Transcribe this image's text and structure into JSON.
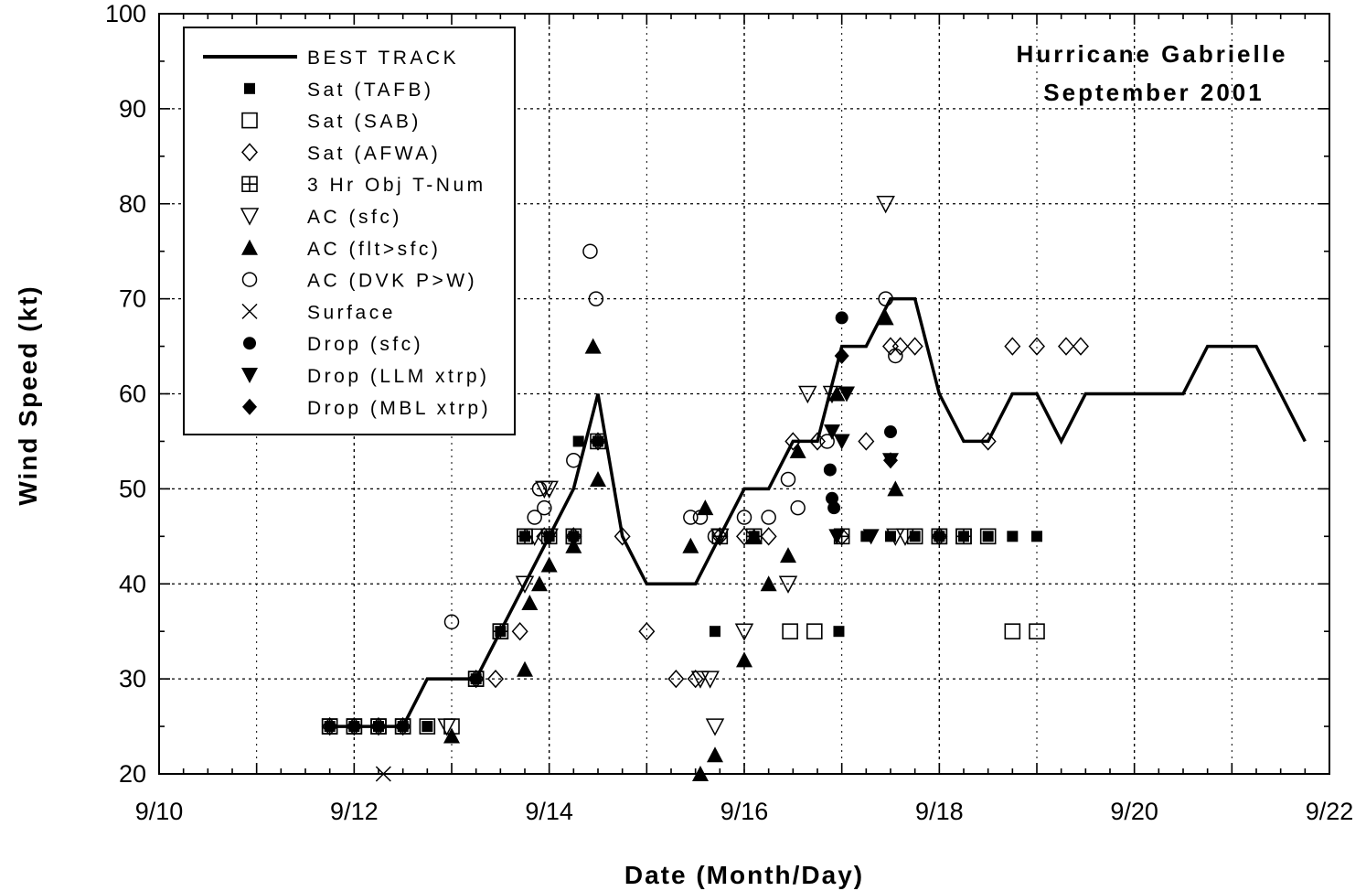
{
  "chart_data": {
    "type": "scatter",
    "title": "Hurricane Gabrielle",
    "subtitle": "September 2001",
    "xlabel": "Date (Month/Day)",
    "ylabel": "Wind Speed (kt)",
    "xlim": [
      10,
      22
    ],
    "ylim": [
      20,
      100
    ],
    "x_tick_values": [
      10,
      12,
      14,
      16,
      18,
      20,
      22
    ],
    "x_tick_labels": [
      "9/10",
      "9/12",
      "9/14",
      "9/16",
      "9/18",
      "9/20",
      "9/22"
    ],
    "y_tick_values": [
      20,
      30,
      40,
      50,
      60,
      70,
      80,
      90,
      100
    ],
    "y_tick_labels": [
      "20",
      "30",
      "40",
      "50",
      "60",
      "70",
      "80",
      "90",
      "100"
    ],
    "x_unit_note": "x values are September day numbers (day of month, fractional days)",
    "grid": true,
    "legend_position": "top-left",
    "series": [
      {
        "name": "BEST TRACK",
        "marker": "line",
        "points": [
          [
            11.75,
            25
          ],
          [
            12.0,
            25
          ],
          [
            12.25,
            25
          ],
          [
            12.5,
            25
          ],
          [
            12.75,
            30
          ],
          [
            13.0,
            30
          ],
          [
            13.25,
            30
          ],
          [
            13.5,
            35
          ],
          [
            13.75,
            40
          ],
          [
            14.0,
            45
          ],
          [
            14.25,
            50
          ],
          [
            14.5,
            60
          ],
          [
            14.75,
            45
          ],
          [
            15.0,
            40
          ],
          [
            15.25,
            40
          ],
          [
            15.5,
            40
          ],
          [
            15.75,
            45
          ],
          [
            16.0,
            50
          ],
          [
            16.25,
            50
          ],
          [
            16.5,
            55
          ],
          [
            16.75,
            55
          ],
          [
            17.0,
            65
          ],
          [
            17.25,
            65
          ],
          [
            17.5,
            70
          ],
          [
            17.75,
            70
          ],
          [
            18.0,
            60
          ],
          [
            18.25,
            55
          ],
          [
            18.5,
            55
          ],
          [
            18.75,
            60
          ],
          [
            19.0,
            60
          ],
          [
            19.25,
            55
          ],
          [
            19.5,
            60
          ],
          [
            19.75,
            60
          ],
          [
            20.0,
            60
          ],
          [
            20.25,
            60
          ],
          [
            20.5,
            60
          ],
          [
            20.75,
            65
          ],
          [
            21.0,
            65
          ],
          [
            21.25,
            65
          ],
          [
            21.5,
            60
          ],
          [
            21.75,
            55
          ]
        ]
      },
      {
        "name": "Sat (TAFB)",
        "marker": "small-square-filled",
        "points": [
          [
            11.75,
            25
          ],
          [
            12.0,
            25
          ],
          [
            12.25,
            25
          ],
          [
            12.5,
            25
          ],
          [
            12.75,
            25
          ],
          [
            13.25,
            30
          ],
          [
            13.5,
            35
          ],
          [
            13.75,
            45
          ],
          [
            14.0,
            45
          ],
          [
            14.25,
            45
          ],
          [
            14.3,
            55
          ],
          [
            14.5,
            55
          ],
          [
            15.7,
            35
          ],
          [
            16.1,
            45
          ],
          [
            16.97,
            35
          ],
          [
            17.25,
            45
          ],
          [
            17.5,
            45
          ],
          [
            17.75,
            45
          ],
          [
            18.0,
            45
          ],
          [
            18.25,
            45
          ],
          [
            18.5,
            45
          ],
          [
            18.75,
            45
          ],
          [
            19.0,
            45
          ]
        ]
      },
      {
        "name": "Sat (SAB)",
        "marker": "square-open",
        "points": [
          [
            11.75,
            25
          ],
          [
            12.0,
            25
          ],
          [
            12.25,
            25
          ],
          [
            12.5,
            25
          ],
          [
            12.75,
            25
          ],
          [
            13.0,
            25
          ],
          [
            13.25,
            30
          ],
          [
            13.5,
            35
          ],
          [
            13.75,
            45
          ],
          [
            14.25,
            45
          ],
          [
            16.47,
            35
          ],
          [
            16.72,
            35
          ],
          [
            17.75,
            45
          ],
          [
            18.0,
            45
          ],
          [
            18.25,
            45
          ],
          [
            18.5,
            45
          ],
          [
            18.75,
            35
          ],
          [
            19.0,
            35
          ]
        ]
      },
      {
        "name": "Sat (AFWA)",
        "marker": "diamond-open",
        "points": [
          [
            11.75,
            25
          ],
          [
            12.0,
            25
          ],
          [
            12.25,
            25
          ],
          [
            12.5,
            25
          ],
          [
            13.25,
            30
          ],
          [
            13.45,
            30
          ],
          [
            13.7,
            35
          ],
          [
            13.95,
            45
          ],
          [
            14.25,
            45
          ],
          [
            14.5,
            55
          ],
          [
            14.75,
            45
          ],
          [
            15.0,
            35
          ],
          [
            15.3,
            30
          ],
          [
            15.5,
            30
          ],
          [
            15.75,
            45
          ],
          [
            16.0,
            45
          ],
          [
            16.25,
            45
          ],
          [
            16.5,
            55
          ],
          [
            16.75,
            55
          ],
          [
            17.0,
            45
          ],
          [
            17.25,
            55
          ],
          [
            17.5,
            65
          ],
          [
            17.6,
            65
          ],
          [
            17.75,
            65
          ],
          [
            18.0,
            45
          ],
          [
            18.5,
            55
          ],
          [
            18.75,
            65
          ],
          [
            19.0,
            65
          ],
          [
            19.3,
            65
          ],
          [
            19.45,
            65
          ]
        ]
      },
      {
        "name": "3 Hr Obj T-Num",
        "marker": "square-cross",
        "points": [
          [
            11.75,
            25
          ],
          [
            12.0,
            25
          ],
          [
            12.25,
            25
          ],
          [
            12.5,
            25
          ],
          [
            13.25,
            30
          ],
          [
            13.5,
            35
          ],
          [
            13.75,
            45
          ],
          [
            14.0,
            45
          ],
          [
            14.25,
            45
          ],
          [
            14.5,
            55
          ],
          [
            15.75,
            45
          ],
          [
            16.1,
            45
          ],
          [
            17.0,
            45
          ],
          [
            18.0,
            45
          ],
          [
            18.25,
            45
          ]
        ]
      },
      {
        "name": "AC (sfc)",
        "marker": "triangle-down-open",
        "points": [
          [
            12.95,
            25
          ],
          [
            13.75,
            40
          ],
          [
            13.85,
            45
          ],
          [
            13.95,
            50
          ],
          [
            14.0,
            50
          ],
          [
            14.0,
            45
          ],
          [
            15.55,
            30
          ],
          [
            15.65,
            30
          ],
          [
            15.75,
            45
          ],
          [
            15.7,
            25
          ],
          [
            16.0,
            35
          ],
          [
            16.45,
            40
          ],
          [
            16.65,
            60
          ],
          [
            16.9,
            60
          ],
          [
            17.45,
            80
          ],
          [
            17.55,
            45
          ],
          [
            17.65,
            45
          ]
        ]
      },
      {
        "name": "AC (flt>sfc)",
        "marker": "triangle-up-filled",
        "points": [
          [
            13.0,
            24
          ],
          [
            13.75,
            31
          ],
          [
            13.8,
            38
          ],
          [
            13.9,
            40
          ],
          [
            14.0,
            42
          ],
          [
            14.25,
            44
          ],
          [
            14.45,
            65
          ],
          [
            14.5,
            51
          ],
          [
            15.45,
            44
          ],
          [
            15.55,
            20
          ],
          [
            15.6,
            48
          ],
          [
            15.7,
            22
          ],
          [
            16.0,
            32
          ],
          [
            16.1,
            45
          ],
          [
            16.25,
            40
          ],
          [
            16.45,
            43
          ],
          [
            16.55,
            54
          ],
          [
            16.95,
            60
          ],
          [
            17.45,
            68
          ],
          [
            17.55,
            50
          ]
        ]
      },
      {
        "name": "AC (DVK P>W)",
        "marker": "circle-open",
        "points": [
          [
            13.0,
            36
          ],
          [
            13.85,
            47
          ],
          [
            13.95,
            48
          ],
          [
            13.9,
            50
          ],
          [
            14.25,
            53
          ],
          [
            14.42,
            75
          ],
          [
            14.48,
            70
          ],
          [
            15.45,
            47
          ],
          [
            15.55,
            47
          ],
          [
            15.7,
            45
          ],
          [
            16.0,
            47
          ],
          [
            16.25,
            47
          ],
          [
            16.45,
            51
          ],
          [
            16.55,
            48
          ],
          [
            16.85,
            55
          ],
          [
            17.45,
            70
          ],
          [
            17.55,
            64
          ]
        ]
      },
      {
        "name": "Surface",
        "marker": "x",
        "points": [
          [
            12.3,
            20
          ]
        ]
      },
      {
        "name": "Drop (sfc)",
        "marker": "circle-filled",
        "points": [
          [
            16.88,
            52
          ],
          [
            16.9,
            49
          ],
          [
            16.92,
            48
          ],
          [
            17.0,
            68
          ],
          [
            17.5,
            56
          ]
        ]
      },
      {
        "name": "Drop (LLM xtrp)",
        "marker": "triangle-down-filled",
        "points": [
          [
            16.9,
            56
          ],
          [
            16.95,
            45
          ],
          [
            17.0,
            55
          ],
          [
            17.05,
            60
          ],
          [
            17.3,
            45
          ],
          [
            17.5,
            53
          ]
        ]
      },
      {
        "name": "Drop (MBL xtrp)",
        "marker": "diamond-filled",
        "points": [
          [
            17.0,
            64
          ],
          [
            17.5,
            53
          ]
        ]
      }
    ]
  }
}
